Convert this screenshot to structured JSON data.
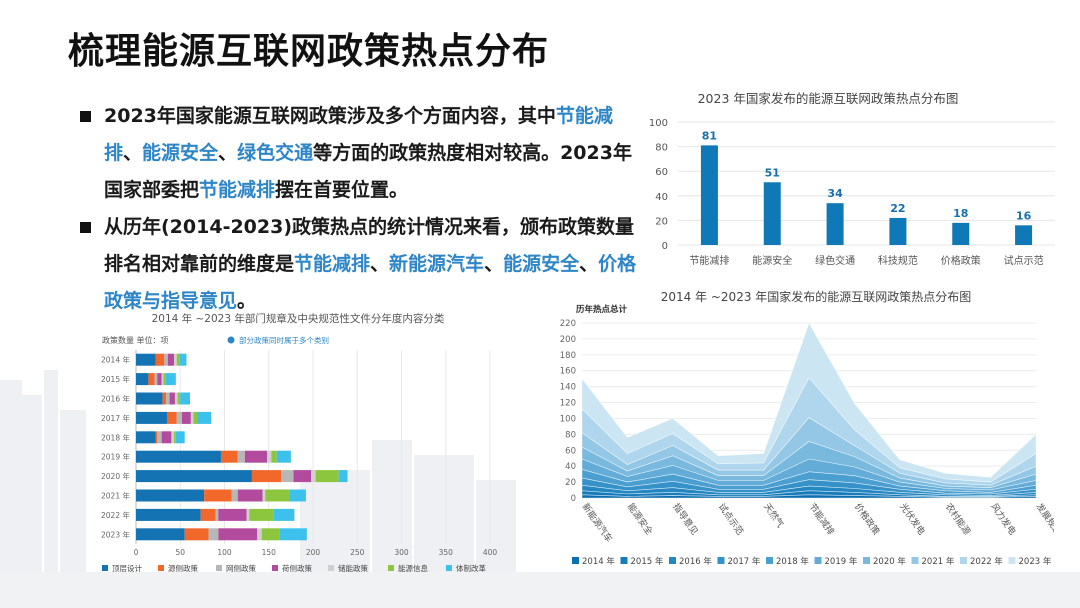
{
  "title": "梳理能源互联网政策热点分布",
  "bullets": [
    {
      "segments": [
        {
          "text": "2023年国家能源互联网政策涉及多个方面内容，其中",
          "hl": false
        },
        {
          "text": "节能减排",
          "hl": true
        },
        {
          "text": "、",
          "hl": false
        },
        {
          "text": "能源安全",
          "hl": true
        },
        {
          "text": "、",
          "hl": false
        },
        {
          "text": "绿色交通",
          "hl": true
        },
        {
          "text": "等方面的政策热度相对较高。2023年国家部委把",
          "hl": false
        },
        {
          "text": "节能减排",
          "hl": true
        },
        {
          "text": "摆在首要位置。",
          "hl": false
        }
      ]
    },
    {
      "segments": [
        {
          "text": "从历年(2014-2023)政策热点的统计情况来看，颁布政策数量排名相对靠前的维度是",
          "hl": false
        },
        {
          "text": "节能减排",
          "hl": true
        },
        {
          "text": "、",
          "hl": false
        },
        {
          "text": "新能源汽车",
          "hl": true
        },
        {
          "text": "、",
          "hl": false
        },
        {
          "text": "能源安全",
          "hl": true
        },
        {
          "text": "、",
          "hl": false
        },
        {
          "text": "价格政策与指导意见",
          "hl": true
        },
        {
          "text": "。",
          "hl": false
        }
      ]
    }
  ],
  "colors": {
    "accent": "#2e86c8",
    "bar_blue": "#0f79b8"
  },
  "chart_data": [
    {
      "type": "bar",
      "title": "2023 年国家发布的能源互联网政策热点分布图",
      "categories": [
        "节能减排",
        "能源安全",
        "绿色交通",
        "科技规范",
        "价格政策",
        "试点示范"
      ],
      "values": [
        81,
        51,
        34,
        22,
        18,
        16
      ],
      "ylim": [
        0,
        100
      ],
      "yticks": [
        0,
        20,
        40,
        60,
        80,
        100
      ],
      "bar_color": "#0f79b8"
    },
    {
      "type": "bar",
      "orientation": "horizontal-stacked",
      "title": "2014 年 ~2023 年部门规章及中央规范性文件分年度内容分类",
      "ylabel": "政策数量  单位：项",
      "note": "部分政策同时属于多个类别",
      "categories": [
        "2014 年",
        "2015 年",
        "2016 年",
        "2017 年",
        "2018 年",
        "2019 年",
        "2020 年",
        "2021 年",
        "2022 年",
        "2023 年"
      ],
      "xlim": [
        0,
        400
      ],
      "xticks": [
        0,
        50,
        100,
        150,
        200,
        250,
        300,
        350,
        400
      ],
      "series": [
        {
          "name": "顶层设计",
          "color": "#1373b3",
          "values": [
            22,
            14,
            30,
            35,
            22,
            96,
            131,
            77,
            73,
            55
          ]
        },
        {
          "name": "源侧政策",
          "color": "#f2672a",
          "values": [
            10,
            7,
            4,
            11,
            2,
            19,
            33,
            31,
            17,
            27
          ]
        },
        {
          "name": "网侧政策",
          "color": "#b7b7b7",
          "values": [
            4,
            3,
            4,
            6,
            5,
            8,
            14,
            7,
            3,
            11
          ]
        },
        {
          "name": "荷侧政策",
          "color": "#b24a9e",
          "values": [
            7,
            5,
            6,
            10,
            11,
            25,
            20,
            28,
            32,
            44
          ]
        },
        {
          "name": "储能政策",
          "color": "#cfcfcf",
          "values": [
            3,
            2,
            3,
            3,
            3,
            5,
            5,
            3,
            3,
            5
          ]
        },
        {
          "name": "能源信息",
          "color": "#8cc63f",
          "values": [
            3,
            2,
            3,
            4,
            2,
            6,
            26,
            27,
            27,
            20
          ]
        },
        {
          "name": "体制改革",
          "color": "#3dc0ec",
          "values": [
            8,
            12,
            11,
            16,
            10,
            16,
            10,
            19,
            24,
            31
          ]
        }
      ]
    },
    {
      "type": "area",
      "stacked": true,
      "title": "2014 年 ~2023 年国家发布的能源互联网政策热点分布图",
      "ylabel": "历年热点总计",
      "categories": [
        "新能源汽车",
        "能源安全",
        "指导意见",
        "试点示范",
        "天然气",
        "节能减排",
        "价格政策",
        "光伏发电",
        "农村能源",
        "风力发电",
        "发展规划"
      ],
      "ylim": [
        0,
        220
      ],
      "yticks": [
        0,
        20,
        40,
        60,
        80,
        100,
        120,
        140,
        160,
        180,
        200,
        220
      ],
      "series": [
        {
          "name": "2014 年",
          "color": "#0d6fb0",
          "values": [
            4,
            2,
            3,
            2,
            2,
            4,
            3,
            2,
            1,
            1,
            2
          ]
        },
        {
          "name": "2015 年",
          "color": "#177bba",
          "values": [
            5,
            3,
            4,
            2,
            2,
            5,
            4,
            2,
            1,
            1,
            2
          ]
        },
        {
          "name": "2016 年",
          "color": "#2487c1",
          "values": [
            7,
            4,
            6,
            3,
            3,
            6,
            5,
            3,
            2,
            1,
            3
          ]
        },
        {
          "name": "2017 年",
          "color": "#3592c8",
          "values": [
            9,
            5,
            8,
            4,
            4,
            8,
            7,
            4,
            2,
            2,
            4
          ]
        },
        {
          "name": "2018 年",
          "color": "#4b9fd0",
          "values": [
            11,
            6,
            9,
            5,
            5,
            10,
            9,
            4,
            3,
            2,
            5
          ]
        },
        {
          "name": "2019 年",
          "color": "#62acd7",
          "values": [
            13,
            7,
            11,
            6,
            6,
            16,
            11,
            5,
            3,
            3,
            6
          ]
        },
        {
          "name": "2020 年",
          "color": "#7ab9de",
          "values": [
            15,
            7,
            12,
            6,
            6,
            22,
            13,
            5,
            3,
            3,
            8
          ]
        },
        {
          "name": "2021 年",
          "color": "#93c7e5",
          "values": [
            18,
            8,
            13,
            7,
            7,
            30,
            14,
            6,
            4,
            3,
            10
          ]
        },
        {
          "name": "2022 年",
          "color": "#afd6ec",
          "values": [
            30,
            14,
            15,
            8,
            9,
            50,
            20,
            7,
            5,
            4,
            16
          ]
        },
        {
          "name": "2023 年",
          "color": "#cbe5f3",
          "values": [
            38,
            20,
            19,
            10,
            12,
            69,
            33,
            10,
            7,
            6,
            24
          ]
        }
      ]
    }
  ]
}
